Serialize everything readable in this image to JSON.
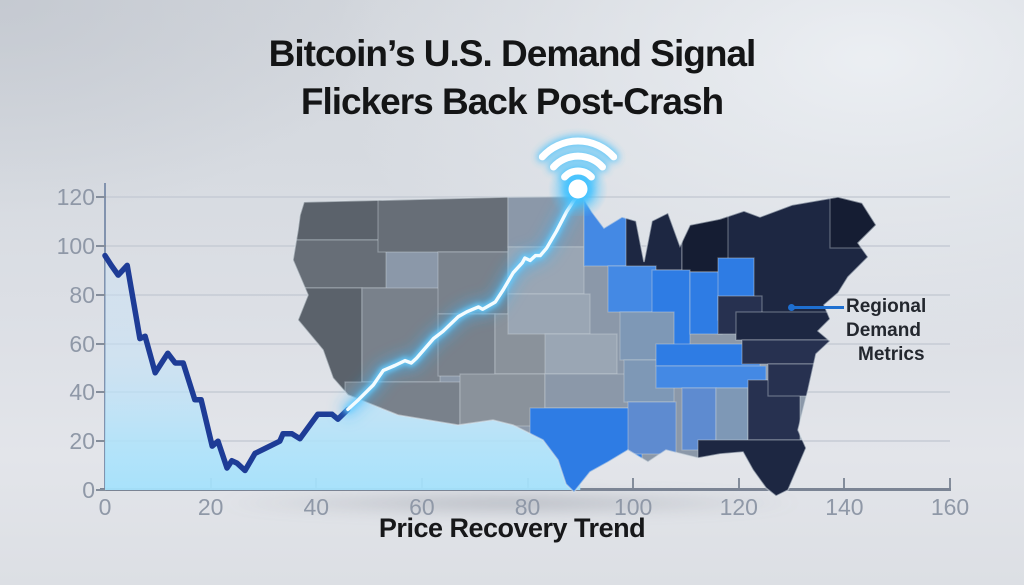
{
  "title": {
    "line1": "Bitcoin’s U.S. Demand Signal",
    "line2": "Flickers Back Post-Crash"
  },
  "annotation": {
    "line1": "Regional Demand",
    "line2": "Metrics"
  },
  "icons": {
    "wifi": "wifi-signal-icon"
  },
  "colors": {
    "title_text": "#141516",
    "axis_line": "#7b8494",
    "grid_line": "#c5cbd4",
    "tick_label": "#8f98a7",
    "decline_line": "#1e3c96",
    "glow_core": "#ffffff",
    "glow_mid": "#66cdff",
    "glow_outer": "#35b5ff",
    "area_fill_top": "#cfe4f6",
    "area_fill_bottom": "#aee3fb",
    "annotation_line": "#1e6fd0",
    "annotation_text": "#23272e",
    "wifi_glow": "#3ec1ff",
    "wifi_core": "#ffffff"
  },
  "map": {
    "border_color": "#ccd4dd",
    "palette": {
      "grey_dark": "#5b626b",
      "grey": "#676e77",
      "grey_light": "#79818b",
      "grey_lighter": "#8a929b",
      "slate": "#8b98a9",
      "slate_light": "#9aa6b4",
      "blue_bright": "#2e7ce4",
      "blue": "#4489e4",
      "blue_muted": "#7e98b6",
      "blue_soft": "#5e8bd0",
      "navy": "#273150",
      "navy_dark": "#1d2742",
      "navy_darker": "#151d33"
    }
  },
  "chart_data": {
    "type": "line",
    "title": "Bitcoin’s U.S. Demand Signal Flickers Back Post-Crash",
    "xlabel": "Price Recovery Trend",
    "ylabel": "",
    "xlim": [
      0,
      160
    ],
    "ylim": [
      0,
      120
    ],
    "x_ticks": [
      0,
      20,
      40,
      60,
      80,
      100,
      120,
      140,
      160
    ],
    "y_ticks": [
      0,
      20,
      40,
      60,
      80,
      100,
      120
    ],
    "grid": "horizontal",
    "legend_position": "none",
    "annotations": [
      {
        "text": "Regional Demand Metrics",
        "attach_x": 130,
        "attach_y": 75
      },
      {
        "text": "wifi-signal-icon",
        "attach_x": 90,
        "attach_y": 122
      }
    ],
    "series": [
      {
        "name": "decline",
        "style": "solid-navy",
        "points": [
          [
            0,
            96
          ],
          [
            1.2,
            92
          ],
          [
            2.5,
            88
          ],
          [
            4.2,
            92
          ],
          [
            6.6,
            62
          ],
          [
            7.6,
            63
          ],
          [
            9.5,
            48
          ],
          [
            11.9,
            56
          ],
          [
            13.3,
            52
          ],
          [
            14.8,
            52
          ],
          [
            17,
            37
          ],
          [
            18.2,
            37
          ],
          [
            20.3,
            18
          ],
          [
            21.4,
            20
          ],
          [
            23.1,
            9
          ],
          [
            24,
            12
          ],
          [
            25,
            11
          ],
          [
            26.5,
            8
          ],
          [
            28.4,
            15
          ],
          [
            30.3,
            17
          ],
          [
            33.1,
            20
          ],
          [
            33.7,
            23
          ],
          [
            35.4,
            23
          ],
          [
            36.9,
            21
          ],
          [
            40.3,
            31
          ],
          [
            43,
            31
          ],
          [
            44.1,
            29
          ],
          [
            46,
            33
          ]
        ]
      },
      {
        "name": "recovery",
        "style": "glow-cyan",
        "points": [
          [
            46,
            33
          ],
          [
            48,
            37
          ],
          [
            50.8,
            43
          ],
          [
            52.7,
            49
          ],
          [
            54.9,
            51
          ],
          [
            56.8,
            53
          ],
          [
            58,
            52
          ],
          [
            59,
            54
          ],
          [
            62.2,
            62
          ],
          [
            64,
            65
          ],
          [
            66.9,
            71
          ],
          [
            68.5,
            73
          ],
          [
            70.7,
            75
          ],
          [
            71.5,
            74
          ],
          [
            73.9,
            77
          ],
          [
            75.4,
            82
          ],
          [
            77.3,
            89
          ],
          [
            79,
            93
          ],
          [
            79.5,
            95
          ],
          [
            80.5,
            94
          ],
          [
            81.5,
            96
          ],
          [
            82.4,
            96
          ],
          [
            83.6,
            99
          ],
          [
            85.5,
            106
          ],
          [
            87.4,
            114
          ],
          [
            88.6,
            118
          ],
          [
            90,
            122
          ]
        ]
      }
    ]
  }
}
